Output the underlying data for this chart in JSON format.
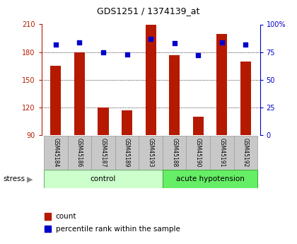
{
  "title": "GDS1251 / 1374139_at",
  "samples": [
    "GSM45184",
    "GSM45186",
    "GSM45187",
    "GSM45189",
    "GSM45193",
    "GSM45188",
    "GSM45190",
    "GSM45191",
    "GSM45192"
  ],
  "counts": [
    165,
    180,
    120,
    117,
    210,
    177,
    110,
    200,
    170
  ],
  "percentiles": [
    82,
    84,
    75,
    73,
    87,
    83,
    72,
    84,
    82
  ],
  "ylim_left": [
    90,
    210
  ],
  "ylim_right": [
    0,
    100
  ],
  "yticks_left": [
    90,
    120,
    150,
    180,
    210
  ],
  "yticks_right": [
    0,
    25,
    50,
    75,
    100
  ],
  "ytick_labels_right": [
    "0",
    "25",
    "50",
    "75",
    "100%"
  ],
  "bar_color": "#b51a00",
  "dot_color": "#0000cc",
  "bar_width": 0.45,
  "control_indices": [
    0,
    1,
    2,
    3,
    4
  ],
  "acute_indices": [
    5,
    6,
    7,
    8
  ],
  "control_label": "control",
  "acute_label": "acute hypotension",
  "stress_label": "stress",
  "control_color": "#ccffcc",
  "acute_color": "#66ee66",
  "tick_area_color": "#c8c8c8",
  "legend_count_label": "count",
  "legend_pct_label": "percentile rank within the sample"
}
